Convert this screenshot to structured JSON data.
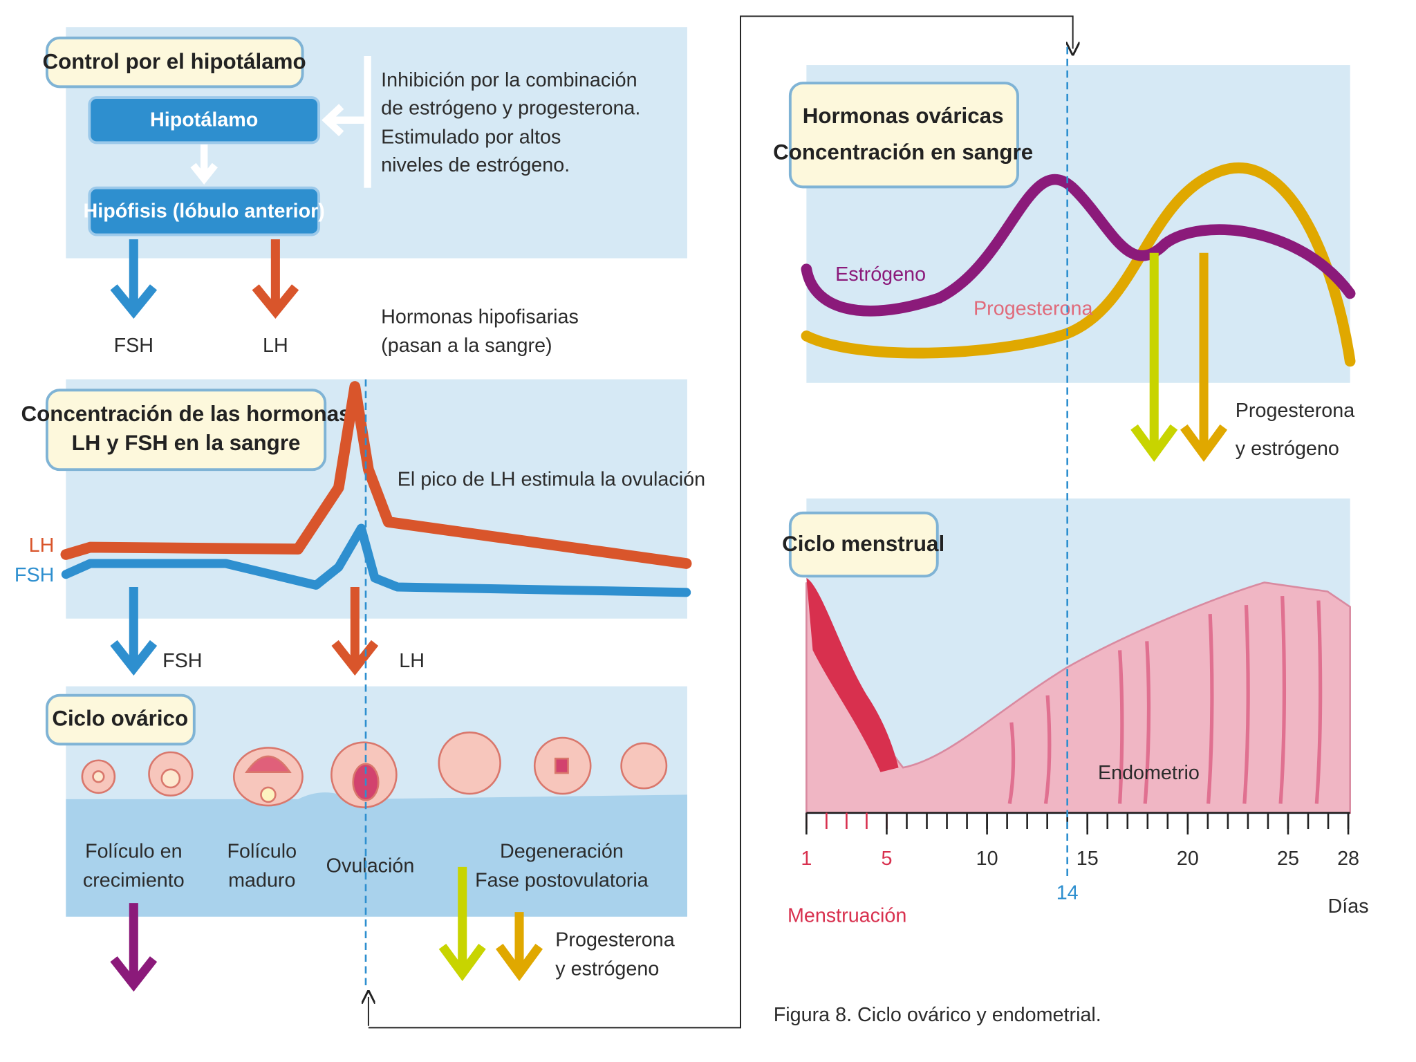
{
  "left_panel": {
    "control": {
      "title": "Control por el hipotálamo",
      "hypothalamus": "Hipotálamo",
      "pituitary": "Hipófisis (lóbulo anterior)",
      "inhibition_note": [
        "Inhibición por la combinación",
        "de estrógeno y progesterona.",
        "Estimulado por altos",
        "niveles de estrógeno."
      ]
    },
    "outputs": {
      "fsh": "FSH",
      "lh": "LH",
      "note": [
        "Hormonas hipofisarias",
        "(pasan a la sangre)"
      ]
    },
    "concentration": {
      "title": [
        "Concentración de las hormonas",
        "LH y FSH en la sangre"
      ],
      "peak_note": "El pico de LH estimula la ovulación",
      "lh_label": "LH",
      "fsh_label": "FSH"
    },
    "arrows": {
      "fsh": "FSH",
      "lh": "LH"
    },
    "ovarian_cycle": {
      "title": "Ciclo ovárico",
      "stages": [
        [
          "Folículo en",
          "crecimiento"
        ],
        [
          "Folículo",
          "maduro"
        ],
        [
          "Ovulación"
        ],
        [
          "Degeneración",
          "Fase postovulatoria"
        ]
      ],
      "hormones": [
        "Progesterona",
        "y estrógeno"
      ]
    }
  },
  "right_panel": {
    "ovarian_hormones": {
      "title": [
        "Hormonas ováricas",
        "Concentración en sangre"
      ],
      "estrogen": "Estrógeno",
      "progesterone": "Progesterona",
      "hormones": [
        "Progesterona",
        "y estrógeno"
      ]
    },
    "menstrual_cycle": {
      "title": "Ciclo menstrual",
      "endometrium": "Endometrio",
      "day_ticks": [
        1,
        5,
        10,
        15,
        20,
        25,
        28
      ],
      "ovulation_day": 14,
      "days_label": "Días",
      "menstruation": "Menstruación"
    },
    "caption": "Figura 8. Ciclo ovárico y endometrial."
  }
}
